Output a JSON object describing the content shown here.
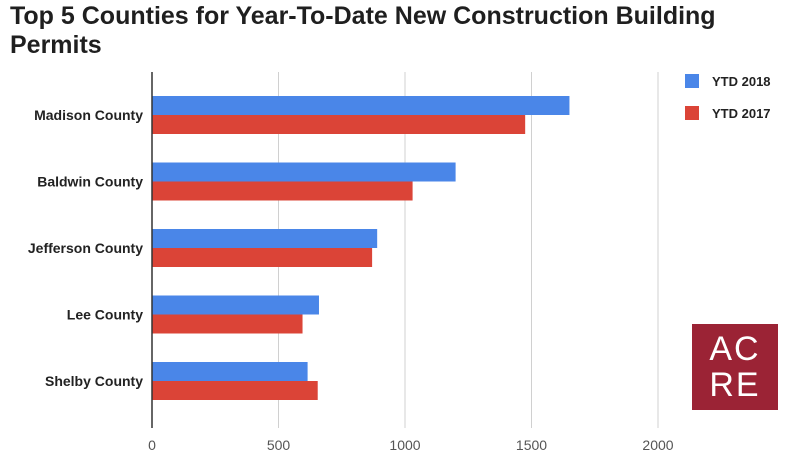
{
  "title": "Top 5 Counties for Year-To-Date New Construction Building Permits",
  "logo": {
    "line1": "AC",
    "line2": "RE",
    "color": "#9b2335"
  },
  "chart_data": {
    "type": "bar",
    "orientation": "horizontal",
    "title": "Top 5 Counties for Year-To-Date New Construction Building Permits",
    "categories": [
      "Madison County",
      "Baldwin County",
      "Jefferson County",
      "Lee County",
      "Shelby County"
    ],
    "series": [
      {
        "name": "YTD 2018",
        "color": "#4a86e8",
        "values": [
          1650,
          1200,
          890,
          660,
          615
        ]
      },
      {
        "name": "YTD 2017",
        "color": "#db4437",
        "values": [
          1475,
          1030,
          870,
          595,
          655
        ]
      }
    ],
    "xlim": [
      0,
      2000
    ],
    "xticks": [
      0,
      500,
      1000,
      1500,
      2000
    ],
    "grid": true,
    "legend": "top-right"
  }
}
